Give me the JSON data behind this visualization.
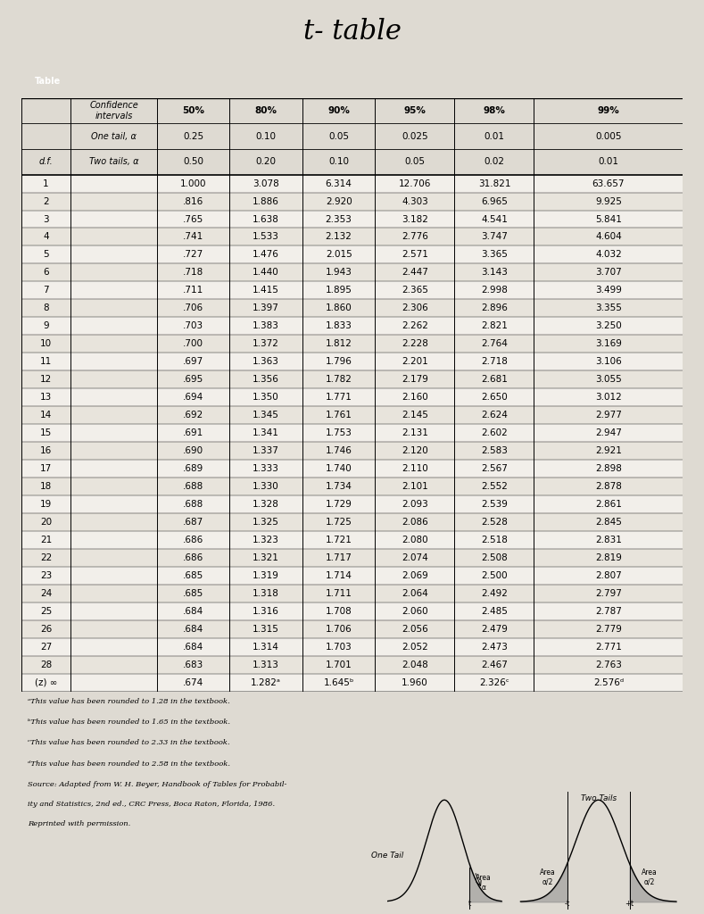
{
  "title": "t- table",
  "col_headers": [
    "",
    "Confidence\nintervals",
    "50%",
    "80%",
    "90%",
    "95%",
    "98%",
    "99%"
  ],
  "row2": [
    "",
    "One tail, α",
    "0.25",
    "0.10",
    "0.05",
    "0.025",
    "0.01",
    "0.005"
  ],
  "row3": [
    "d.f.",
    "Two tails, α",
    "0.50",
    "0.20",
    "0.10",
    "0.05",
    "0.02",
    "0.01"
  ],
  "rows": [
    [
      "1",
      "",
      "1.000",
      "3.078",
      "6.314",
      "12.706",
      "31.821",
      "63.657"
    ],
    [
      "2",
      "",
      ".816",
      "1.886",
      "2.920",
      "4.303",
      "6.965",
      "9.925"
    ],
    [
      "3",
      "",
      ".765",
      "1.638",
      "2.353",
      "3.182",
      "4.541",
      "5.841"
    ],
    [
      "4",
      "",
      ".741",
      "1.533",
      "2.132",
      "2.776",
      "3.747",
      "4.604"
    ],
    [
      "5",
      "",
      ".727",
      "1.476",
      "2.015",
      "2.571",
      "3.365",
      "4.032"
    ],
    [
      "6",
      "",
      ".718",
      "1.440",
      "1.943",
      "2.447",
      "3.143",
      "3.707"
    ],
    [
      "7",
      "",
      ".711",
      "1.415",
      "1.895",
      "2.365",
      "2.998",
      "3.499"
    ],
    [
      "8",
      "",
      ".706",
      "1.397",
      "1.860",
      "2.306",
      "2.896",
      "3.355"
    ],
    [
      "9",
      "",
      ".703",
      "1.383",
      "1.833",
      "2.262",
      "2.821",
      "3.250"
    ],
    [
      "10",
      "",
      ".700",
      "1.372",
      "1.812",
      "2.228",
      "2.764",
      "3.169"
    ],
    [
      "11",
      "",
      ".697",
      "1.363",
      "1.796",
      "2.201",
      "2.718",
      "3.106"
    ],
    [
      "12",
      "",
      ".695",
      "1.356",
      "1.782",
      "2.179",
      "2.681",
      "3.055"
    ],
    [
      "13",
      "",
      ".694",
      "1.350",
      "1.771",
      "2.160",
      "2.650",
      "3.012"
    ],
    [
      "14",
      "",
      ".692",
      "1.345",
      "1.761",
      "2.145",
      "2.624",
      "2.977"
    ],
    [
      "15",
      "",
      ".691",
      "1.341",
      "1.753",
      "2.131",
      "2.602",
      "2.947"
    ],
    [
      "16",
      "",
      ".690",
      "1.337",
      "1.746",
      "2.120",
      "2.583",
      "2.921"
    ],
    [
      "17",
      "",
      ".689",
      "1.333",
      "1.740",
      "2.110",
      "2.567",
      "2.898"
    ],
    [
      "18",
      "",
      ".688",
      "1.330",
      "1.734",
      "2.101",
      "2.552",
      "2.878"
    ],
    [
      "19",
      "",
      ".688",
      "1.328",
      "1.729",
      "2.093",
      "2.539",
      "2.861"
    ],
    [
      "20",
      "",
      ".687",
      "1.325",
      "1.725",
      "2.086",
      "2.528",
      "2.845"
    ],
    [
      "21",
      "",
      ".686",
      "1.323",
      "1.721",
      "2.080",
      "2.518",
      "2.831"
    ],
    [
      "22",
      "",
      ".686",
      "1.321",
      "1.717",
      "2.074",
      "2.508",
      "2.819"
    ],
    [
      "23",
      "",
      ".685",
      "1.319",
      "1.714",
      "2.069",
      "2.500",
      "2.807"
    ],
    [
      "24",
      "",
      ".685",
      "1.318",
      "1.711",
      "2.064",
      "2.492",
      "2.797"
    ],
    [
      "25",
      "",
      ".684",
      "1.316",
      "1.708",
      "2.060",
      "2.485",
      "2.787"
    ],
    [
      "26",
      "",
      ".684",
      "1.315",
      "1.706",
      "2.056",
      "2.479",
      "2.779"
    ],
    [
      "27",
      "",
      ".684",
      "1.314",
      "1.703",
      "2.052",
      "2.473",
      "2.771"
    ],
    [
      "28",
      "",
      ".683",
      "1.313",
      "1.701",
      "2.048",
      "2.467",
      "2.763"
    ],
    [
      "(z) ∞",
      "",
      ".674",
      "1.282ᵃ",
      "1.645ᵇ",
      "1.960",
      "2.326ᶜ",
      "2.576ᵈ"
    ]
  ],
  "paper_color": "#dedad2",
  "dark_band_color": "#3a3530",
  "footnote_lines": [
    "ᵃThis value has been rounded to 1.28 in the textbook.",
    "ᵇThis value has been rounded to 1.65 in the textbook.",
    "ᶜThis value has been rounded to 2.33 in the textbook.",
    "ᵈThis value has been rounded to 2.58 in the textbook.",
    "Source: Adapted from W. H. Beyer, Handbook of Tables for Probabil-",
    "ity and Statistics, 2nd ed., CRC Press, Boca Raton, Florida, 1986.",
    "Reprinted with permission."
  ]
}
